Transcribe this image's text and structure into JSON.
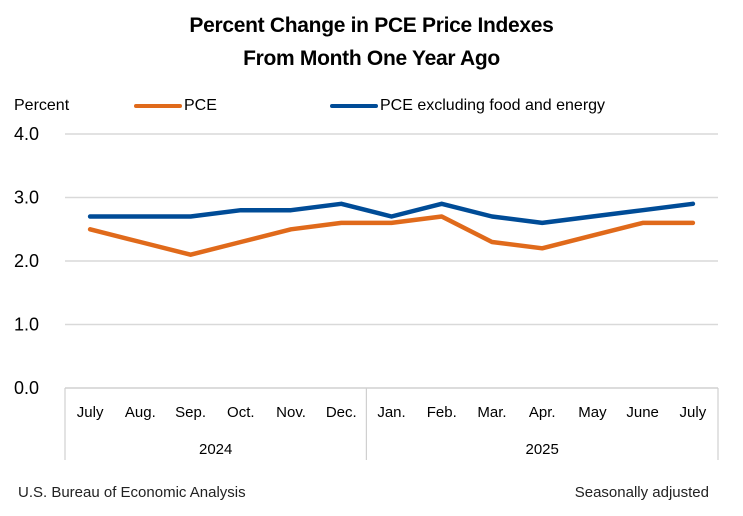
{
  "chart_data": {
    "type": "line",
    "title": "Percent Change in PCE Price Indexes",
    "subtitle": "From Month One Year Ago",
    "ylabel": "Percent",
    "xlabel": "",
    "ylim": [
      0,
      4
    ],
    "yticks": [
      "0.0",
      "1.0",
      "2.0",
      "3.0",
      "4.0"
    ],
    "grid": true,
    "legend_position": "top",
    "categories": [
      "July",
      "Aug.",
      "Sep.",
      "Oct.",
      "Nov.",
      "Dec.",
      "Jan.",
      "Feb.",
      "Mar.",
      "Apr.",
      "May",
      "June",
      "July"
    ],
    "groups": [
      {
        "label": "2024",
        "count": 6
      },
      {
        "label": "2025",
        "count": 7
      }
    ],
    "series": [
      {
        "name": "PCE",
        "color": "#E06A1B",
        "values": [
          2.5,
          2.3,
          2.1,
          2.3,
          2.5,
          2.6,
          2.6,
          2.7,
          2.3,
          2.2,
          2.4,
          2.6,
          2.6
        ]
      },
      {
        "name": "PCE excluding food and energy",
        "color": "#004C97",
        "values": [
          2.7,
          2.7,
          2.7,
          2.8,
          2.8,
          2.9,
          2.7,
          2.9,
          2.7,
          2.6,
          2.7,
          2.8,
          2.9
        ]
      }
    ]
  },
  "footer": {
    "source": "U.S. Bureau of Economic Analysis",
    "note": "Seasonally adjusted"
  }
}
